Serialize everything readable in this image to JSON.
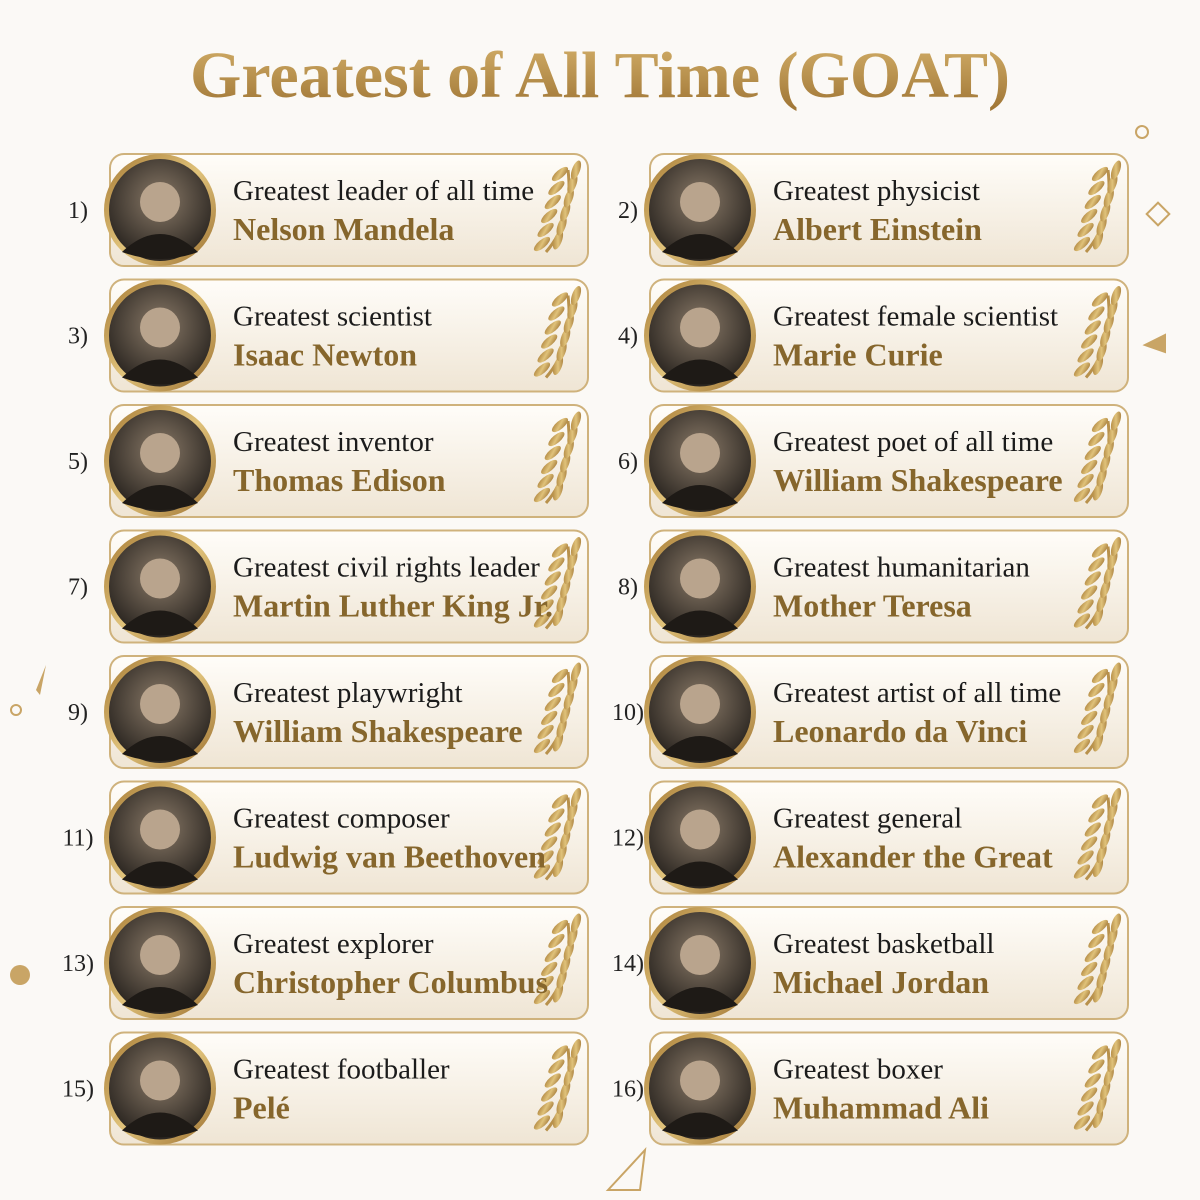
{
  "header": {
    "title": "Greatest of All Time (GOAT)"
  },
  "entries": [
    {
      "number": "1)",
      "category": "Greatest leader of all time",
      "name": "Nelson Mandela"
    },
    {
      "number": "2)",
      "category": "Greatest physicist",
      "name": "Albert Einstein"
    },
    {
      "number": "3)",
      "category": "Greatest scientist",
      "name": "Isaac Newton"
    },
    {
      "number": "4)",
      "category": "Greatest female scientist",
      "name": "Marie Curie"
    },
    {
      "number": "5)",
      "category": "Greatest inventor",
      "name": "Thomas Edison"
    },
    {
      "number": "6)",
      "category": "Greatest poet of all time",
      "name": "William Shakespeare"
    },
    {
      "number": "7)",
      "category": "Greatest civil rights leader",
      "name": "Martin Luther King Jr."
    },
    {
      "number": "8)",
      "category": "Greatest humanitarian",
      "name": "Mother Teresa"
    },
    {
      "number": "9)",
      "category": "Greatest playwright",
      "name": "William Shakespeare"
    },
    {
      "number": "10)",
      "category": "Greatest artist of all time",
      "name": "Leonardo da Vinci"
    },
    {
      "number": "11)",
      "category": "Greatest composer",
      "name": "Ludwig van Beethoven"
    },
    {
      "number": "12)",
      "category": "Greatest general",
      "name": "Alexander the Great"
    },
    {
      "number": "13)",
      "category": "Greatest explorer",
      "name": "Christopher Columbus"
    },
    {
      "number": "14)",
      "category": "Greatest basketball",
      "name": "Michael Jordan"
    },
    {
      "number": "15)",
      "category": "Greatest footballer",
      "name": "Pelé"
    },
    {
      "number": "16)",
      "category": "Greatest boxer",
      "name": "Muhammad Ali"
    }
  ]
}
